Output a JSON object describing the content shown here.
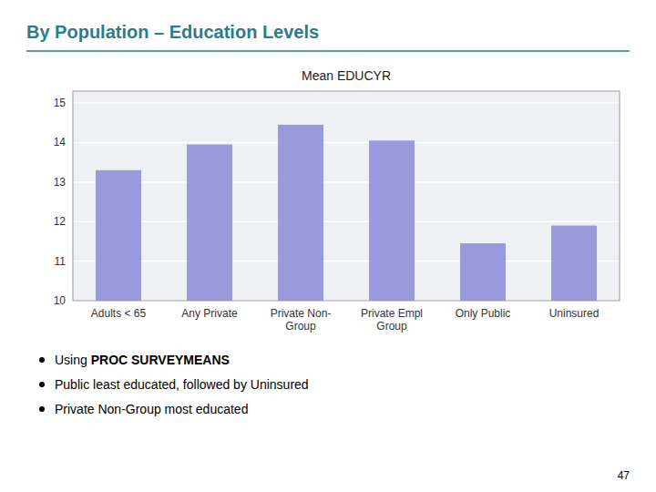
{
  "chart_data": {
    "type": "bar",
    "title": "By Population – Education Levels",
    "subtitle": "Mean EDUCYR",
    "categories": [
      "Adults < 65",
      "Any Private",
      "Private Non-\nGroup",
      "Private Empl\nGroup",
      "Only Public",
      "Uninsured"
    ],
    "values": [
      13.3,
      13.95,
      14.45,
      14.05,
      11.45,
      11.9
    ],
    "color": "#9999dd",
    "ylim": [
      10,
      15.3
    ],
    "yticks": [
      10,
      11,
      12,
      13,
      14,
      15
    ],
    "grid": true,
    "annotations": [
      [
        "Using ",
        "PROC SURVEYMEANS"
      ],
      [
        "Public least educated, followed by Uninsured"
      ],
      [
        "Private Non-Group most educated"
      ]
    ],
    "page_number": "47"
  }
}
